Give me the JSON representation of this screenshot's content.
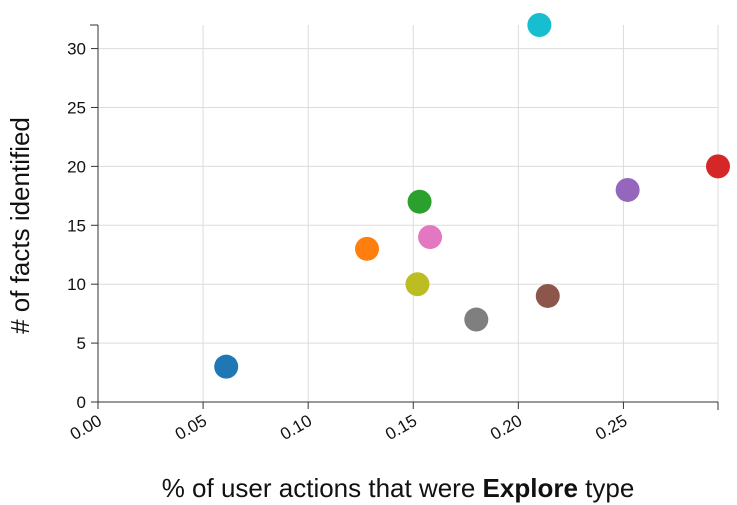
{
  "chart_data": {
    "type": "scatter",
    "xlabel": "% of user actions that were {Explore} type",
    "xlabel_parts": {
      "before": "% of user actions that were ",
      "bold": "Explore",
      "after": " type"
    },
    "ylabel": "# of facts identified",
    "xlim": [
      0,
      0.295
    ],
    "ylim": [
      0,
      32
    ],
    "x_ticks": [
      "0.00",
      "0.05",
      "0.10",
      "0.15",
      "0.20",
      "0.25"
    ],
    "x_tick_values": [
      0,
      0.05,
      0.1,
      0.15,
      0.2,
      0.25
    ],
    "y_ticks": [
      "0",
      "5",
      "10",
      "15",
      "20",
      "25",
      "30"
    ],
    "y_tick_values": [
      0,
      5,
      10,
      15,
      20,
      25,
      30
    ],
    "grid": true,
    "legend": "none",
    "points": [
      {
        "x": 0.061,
        "y": 3,
        "color": "#1f77b4"
      },
      {
        "x": 0.128,
        "y": 13,
        "color": "#ff7f0e"
      },
      {
        "x": 0.153,
        "y": 17,
        "color": "#2ca02c"
      },
      {
        "x": 0.295,
        "y": 20,
        "color": "#d62728"
      },
      {
        "x": 0.252,
        "y": 18,
        "color": "#9467bd"
      },
      {
        "x": 0.214,
        "y": 9,
        "color": "#8c564b"
      },
      {
        "x": 0.158,
        "y": 14,
        "color": "#e377c2"
      },
      {
        "x": 0.18,
        "y": 7,
        "color": "#7f7f7f"
      },
      {
        "x": 0.152,
        "y": 10,
        "color": "#bcbd22"
      },
      {
        "x": 0.21,
        "y": 32,
        "color": "#17becf"
      }
    ]
  }
}
